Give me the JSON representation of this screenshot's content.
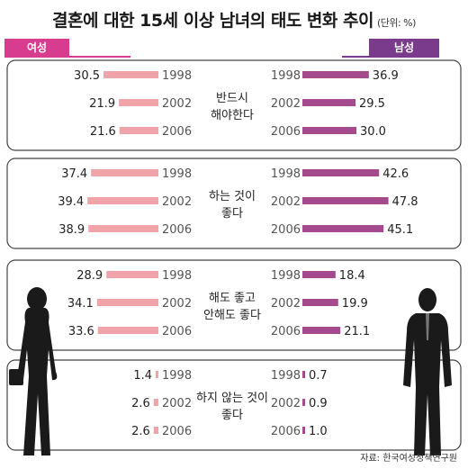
{
  "title": "결혼에 대한 15세 이상 남녀의 태도 변화 추이",
  "unit": "(단위: %)",
  "legend": {
    "female": "여성",
    "male": "남성"
  },
  "colors": {
    "female": "#f0a3a8",
    "male": "#a54a8c",
    "female_tag": "#d83c8f",
    "male_tag": "#7a3b8c",
    "border": "#444444"
  },
  "source": "자료: 한국여성정책연구원",
  "chart_data": {
    "type": "bar",
    "years": [
      "1998",
      "2002",
      "2006"
    ],
    "groups": [
      {
        "label": [
          "반드시",
          "해야한다"
        ],
        "female": [
          30.5,
          21.9,
          21.6
        ],
        "male": [
          36.9,
          29.5,
          30.0
        ]
      },
      {
        "label": [
          "하는 것이",
          "좋다"
        ],
        "female": [
          37.4,
          39.4,
          38.9
        ],
        "male": [
          42.6,
          47.8,
          45.1
        ]
      },
      {
        "label": [
          "해도 좋고",
          "안해도 좋다"
        ],
        "female": [
          28.9,
          34.1,
          33.6
        ],
        "male": [
          18.4,
          19.9,
          21.1
        ]
      },
      {
        "label": [
          "하지 않는 것이",
          "좋다"
        ],
        "female": [
          1.4,
          2.6,
          2.6
        ],
        "male": [
          0.7,
          0.9,
          1.0
        ]
      }
    ]
  }
}
